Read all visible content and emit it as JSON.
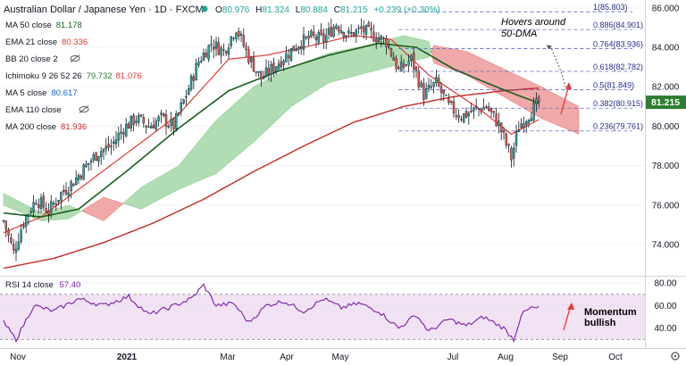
{
  "header": {
    "title": "Australian Dollar / Japanese Yen · 1D · FXCM",
    "ohlc": [
      {
        "k": "O",
        "v": "80.976"
      },
      {
        "k": "H",
        "v": "81.324"
      },
      {
        "k": "L",
        "v": "80.884"
      },
      {
        "k": "C",
        "v": "81.215"
      }
    ],
    "change": "+0.239 (+0.30%)",
    "status_color": "#26a69a"
  },
  "indicators": [
    {
      "label": "MA 50 close",
      "value": "81.178",
      "color": "#1b5e20"
    },
    {
      "label": "EMA 21 close",
      "value": "80.336",
      "color": "#e53935"
    },
    {
      "label": "BB 20 close 2",
      "value": "",
      "color": "#9e9e9e",
      "hidden": true
    },
    {
      "label": "Ichimoku 9 26 52 26",
      "value": "79.732",
      "value2": "81.076",
      "color": "#2e7d32",
      "color2": "#e53935"
    },
    {
      "label": "MA 5 close",
      "value": "80.617",
      "color": "#1565c0"
    },
    {
      "label": "EMA 110 close",
      "value": "",
      "color": "#9e9e9e",
      "hidden": true
    },
    {
      "label": "MA 200 close",
      "value": "81.936",
      "color": "#c62828"
    }
  ],
  "rsi": {
    "label": "RSI 14 close",
    "value": "57.40",
    "color": "#7b1fa2"
  },
  "price_axis": {
    "ticks": [
      "86.000",
      "84.000",
      "82.000",
      "80.000",
      "78.000",
      "76.000",
      "74.000"
    ],
    "last": "81.215",
    "last_color": "#2e7d32"
  },
  "rsi_axis": {
    "ticks": [
      "80.00",
      "60.00",
      "40.00"
    ]
  },
  "time_axis": {
    "ticks": [
      "Nov",
      "2021",
      "Mar",
      "Apr",
      "May",
      "Jul",
      "Aug",
      "Sep",
      "Oct"
    ]
  },
  "fib_levels": [
    {
      "label": "1(85.803)",
      "price": 85.803
    },
    {
      "label": "0.886(84.901)",
      "price": 84.901
    },
    {
      "label": "0.764(83.936)",
      "price": 83.936
    },
    {
      "label": "0.618(82.782)",
      "price": 82.782
    },
    {
      "label": "0.5(81.849)",
      "price": 81.849
    },
    {
      "label": "0.382(80.915)",
      "price": 80.915
    },
    {
      "label": "0.236(79.761)",
      "price": 79.761
    }
  ],
  "annotations": {
    "hover": [
      "Hovers around",
      "50-DMA"
    ],
    "momentum": [
      "Momentum",
      "bullish"
    ]
  },
  "colors": {
    "bull": "#26a69a",
    "bear": "#ef5350",
    "kumo_bull": "#a5d6a7",
    "kumo_bear": "#ef9a9a",
    "rsi_band": "#e1bee7"
  },
  "chart_data": {
    "type": "candlestick",
    "price_range": [
      72.6,
      86.4
    ],
    "rsi_range": [
      24,
      84
    ],
    "rsi_band": [
      30,
      70
    ],
    "candle_count": 225,
    "close_anchors": [
      [
        0,
        75.2
      ],
      [
        4,
        73.6
      ],
      [
        8,
        75.2
      ],
      [
        13,
        76.3
      ],
      [
        18,
        75.7
      ],
      [
        23,
        76.6
      ],
      [
        28,
        77.2
      ],
      [
        33,
        78.0
      ],
      [
        38,
        78.7
      ],
      [
        43,
        79.0
      ],
      [
        48,
        79.9
      ],
      [
        53,
        80.4
      ],
      [
        58,
        80.0
      ],
      [
        63,
        80.4
      ],
      [
        68,
        80.0
      ],
      [
        73,
        81.6
      ],
      [
        78,
        83.3
      ],
      [
        83,
        84.2
      ],
      [
        88,
        83.8
      ],
      [
        93,
        85.0
      ],
      [
        98,
        83.5
      ],
      [
        103,
        82.4
      ],
      [
        108,
        83.0
      ],
      [
        113,
        83.6
      ],
      [
        118,
        84.2
      ],
      [
        123,
        84.5
      ],
      [
        128,
        84.4
      ],
      [
        133,
        85.2
      ],
      [
        138,
        84.6
      ],
      [
        143,
        84.9
      ],
      [
        148,
        84.6
      ],
      [
        153,
        84.3
      ],
      [
        158,
        82.8
      ],
      [
        163,
        83.4
      ],
      [
        168,
        81.6
      ],
      [
        173,
        82.2
      ],
      [
        178,
        81.0
      ],
      [
        183,
        80.5
      ],
      [
        188,
        80.8
      ],
      [
        193,
        81.0
      ],
      [
        198,
        80.1
      ],
      [
        203,
        78.4
      ],
      [
        206,
        80.0
      ],
      [
        210,
        80.6
      ],
      [
        214,
        81.2
      ]
    ],
    "ma50_anchors": [
      [
        0,
        75.6
      ],
      [
        15,
        75.4
      ],
      [
        30,
        75.8
      ],
      [
        50,
        77.8
      ],
      [
        70,
        79.9
      ],
      [
        90,
        81.8
      ],
      [
        110,
        82.8
      ],
      [
        130,
        83.6
      ],
      [
        150,
        84.2
      ],
      [
        165,
        84.0
      ],
      [
        180,
        82.9
      ],
      [
        195,
        82.1
      ],
      [
        205,
        81.6
      ],
      [
        214,
        81.178
      ]
    ],
    "ema21_anchors": [
      [
        0,
        74.6
      ],
      [
        15,
        75.4
      ],
      [
        30,
        76.8
      ],
      [
        50,
        78.7
      ],
      [
        70,
        80.6
      ],
      [
        90,
        83.4
      ],
      [
        105,
        83.6
      ],
      [
        120,
        84.0
      ],
      [
        140,
        84.6
      ],
      [
        155,
        84.4
      ],
      [
        170,
        82.6
      ],
      [
        190,
        80.9
      ],
      [
        203,
        79.6
      ],
      [
        214,
        80.336
      ]
    ],
    "ma200_anchors": [
      [
        0,
        72.8
      ],
      [
        20,
        73.3
      ],
      [
        40,
        74.1
      ],
      [
        60,
        75.1
      ],
      [
        80,
        76.3
      ],
      [
        100,
        77.7
      ],
      [
        120,
        79.0
      ],
      [
        140,
        80.2
      ],
      [
        160,
        81.0
      ],
      [
        180,
        81.5
      ],
      [
        200,
        81.8
      ],
      [
        214,
        81.936
      ]
    ],
    "kumo_anchors": [
      [
        0,
        76.6,
        76.0
      ],
      [
        15,
        75.6,
        75.2
      ],
      [
        26,
        76.0,
        75.3
      ],
      [
        40,
        75.2,
        76.4
      ],
      [
        55,
        76.9,
        75.8
      ],
      [
        70,
        78.0,
        76.8
      ],
      [
        85,
        80.3,
        77.6
      ],
      [
        100,
        82.0,
        79.2
      ],
      [
        115,
        83.0,
        81.0
      ],
      [
        130,
        83.7,
        82.2
      ],
      [
        145,
        84.1,
        82.7
      ],
      [
        160,
        84.6,
        83.2
      ],
      [
        170,
        84.3,
        83.5
      ],
      [
        172,
        83.2,
        84.1
      ],
      [
        185,
        82.6,
        83.8
      ],
      [
        200,
        81.5,
        82.9
      ],
      [
        215,
        80.4,
        82.0
      ],
      [
        230,
        79.6,
        81.0
      ]
    ],
    "rsi_anchors": [
      [
        0,
        45
      ],
      [
        5,
        30
      ],
      [
        12,
        60
      ],
      [
        20,
        55
      ],
      [
        30,
        66
      ],
      [
        40,
        60
      ],
      [
        50,
        68
      ],
      [
        58,
        52
      ],
      [
        66,
        58
      ],
      [
        75,
        66
      ],
      [
        80,
        78
      ],
      [
        85,
        60
      ],
      [
        92,
        62
      ],
      [
        98,
        45
      ],
      [
        105,
        60
      ],
      [
        112,
        64
      ],
      [
        120,
        55
      ],
      [
        128,
        66
      ],
      [
        135,
        58
      ],
      [
        142,
        62
      ],
      [
        150,
        55
      ],
      [
        158,
        40
      ],
      [
        165,
        52
      ],
      [
        170,
        37
      ],
      [
        178,
        48
      ],
      [
        185,
        42
      ],
      [
        192,
        50
      ],
      [
        200,
        40
      ],
      [
        204,
        30
      ],
      [
        207,
        52
      ],
      [
        211,
        58
      ],
      [
        214,
        57.4
      ]
    ]
  }
}
